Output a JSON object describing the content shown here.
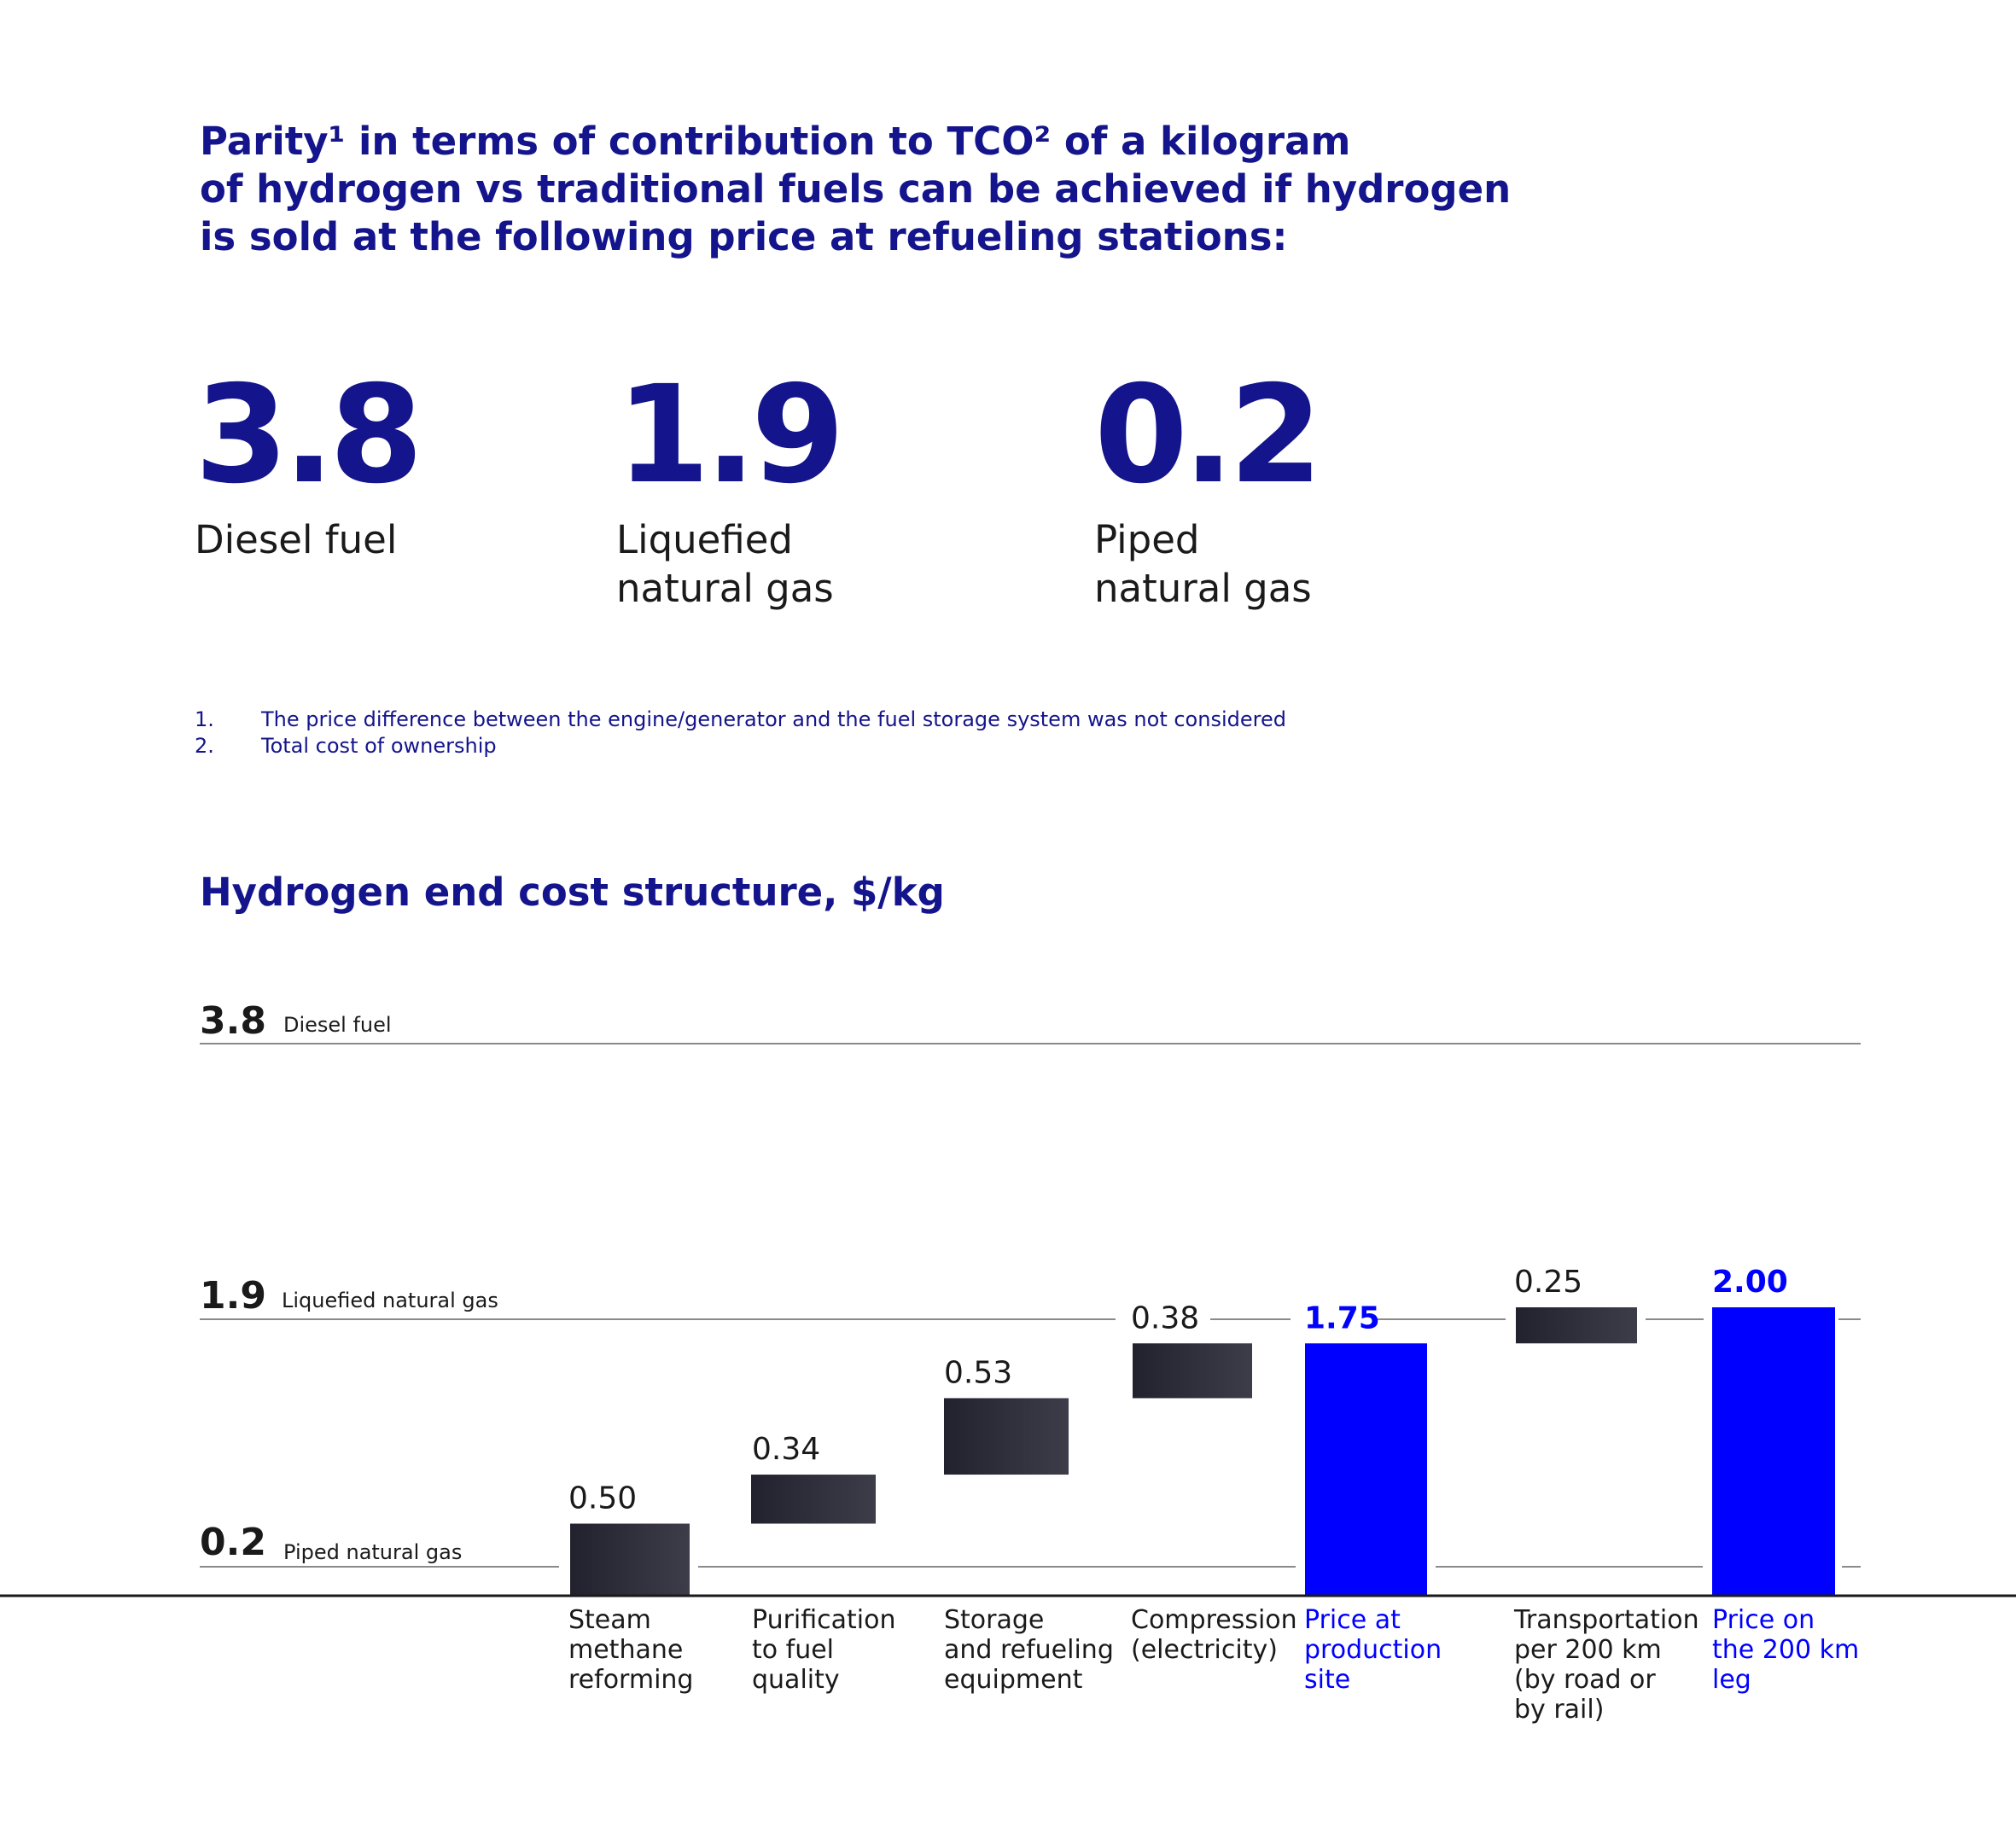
{
  "headline": [
    "Parity¹ in terms of contribution to TCO² of a kilogram",
    "of hydrogen vs traditional fuels can be achieved if hydrogen",
    "is sold at the following price at refueling stations:"
  ],
  "stats": [
    {
      "value": "3.8",
      "label": [
        "Diesel fuel"
      ]
    },
    {
      "value": "1.9",
      "label": [
        "Liquefied",
        "natural gas"
      ]
    },
    {
      "value": "0.2",
      "label": [
        "Piped",
        "natural gas"
      ]
    }
  ],
  "footnotes": [
    {
      "num": "1.",
      "text": "The price difference between the engine/generator and the fuel storage system was not considered"
    },
    {
      "num": "2.",
      "text": "Total cost of ownership"
    }
  ],
  "chart_title": "Hydrogen end cost structure, $/kg",
  "colors": {
    "accent": "#0000ff",
    "navy": "#14148c",
    "bar": "#2b2b3a",
    "text": "#1a1a1a"
  },
  "chart_data": {
    "type": "bar",
    "subtype": "waterfall",
    "ylim": [
      0,
      3.8
    ],
    "reference_lines": [
      {
        "value": 3.8,
        "value_label": "3.8",
        "label": "Diesel fuel"
      },
      {
        "value": 1.9,
        "value_label": "1.9",
        "label": "Liquefied natural gas"
      },
      {
        "value": 0.2,
        "value_label": "0.2",
        "label": "Piped natural gas"
      }
    ],
    "categories": [
      [
        "Steam",
        "methane",
        "reforming"
      ],
      [
        "Purification",
        "to fuel",
        "quality"
      ],
      [
        "Storage",
        "and refueling",
        "equipment"
      ],
      [
        "Compression",
        "(electricity)"
      ],
      [
        "Price at",
        "production",
        "site"
      ],
      [
        "Transportation",
        "per 200 km",
        "(by road or",
        "by rail)"
      ],
      [
        "Price on",
        "the 200 km",
        "leg"
      ]
    ],
    "values": [
      0.5,
      0.34,
      0.53,
      0.38,
      1.75,
      0.25,
      2.0
    ],
    "value_labels": [
      "0.50",
      "0.34",
      "0.53",
      "0.38",
      "1.75",
      "0.25",
      "2.00"
    ],
    "kinds": [
      "delta",
      "delta",
      "delta",
      "delta",
      "total",
      "delta",
      "total"
    ]
  }
}
